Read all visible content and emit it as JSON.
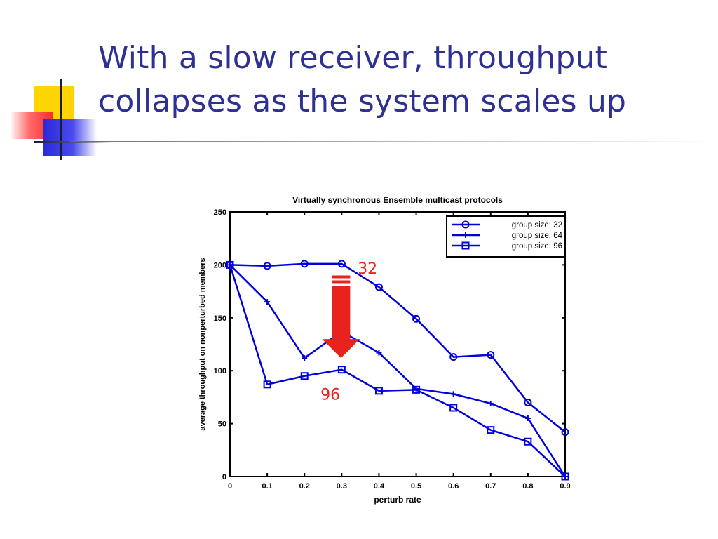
{
  "slide": {
    "title_line1": "With a slow receiver, throughput",
    "title_line2": "collapses as the system scales up"
  },
  "colors": {
    "title": "#2e3192",
    "series": "#0000dd",
    "arrow": "#e8221d",
    "deco_yellow": "#ffd400",
    "deco_red": "#ff4d4d",
    "deco_blue": "#3030e0"
  },
  "chart_data": {
    "type": "line",
    "title": "Virtually synchronous Ensemble multicast protocols",
    "xlabel": "perturb rate",
    "ylabel": "average throughput on nonperturbed members",
    "xlim": [
      0,
      0.9
    ],
    "ylim": [
      0,
      250
    ],
    "xticks": [
      "0",
      "0.1",
      "0.2",
      "0.3",
      "0.4",
      "0.5",
      "0.6",
      "0.7",
      "0.8",
      "0.9"
    ],
    "yticks": [
      "0",
      "50",
      "100",
      "150",
      "200",
      "250"
    ],
    "grid": false,
    "legend_position": "top-right",
    "x": [
      0,
      0.1,
      0.2,
      0.3,
      0.4,
      0.5,
      0.6,
      0.7,
      0.8,
      0.9
    ],
    "series": [
      {
        "name": "group size: 32",
        "marker": "circle",
        "values": [
          200,
          199,
          201,
          201,
          179,
          149,
          113,
          115,
          70,
          42
        ]
      },
      {
        "name": "group size: 64",
        "marker": "plus",
        "values": [
          200,
          165,
          112,
          137,
          117,
          83,
          78,
          69,
          55,
          0
        ]
      },
      {
        "name": "group size: 96",
        "marker": "square",
        "values": [
          200,
          87,
          95,
          101,
          81,
          82,
          65,
          44,
          33,
          0
        ]
      }
    ],
    "annotations": [
      {
        "text": "32",
        "x": 0.36,
        "y": 197
      },
      {
        "text": "96",
        "x": 0.26,
        "y": 78
      }
    ],
    "arrow": {
      "x": 0.3,
      "from_y": 190,
      "to_y": 112,
      "direction": "down"
    }
  }
}
